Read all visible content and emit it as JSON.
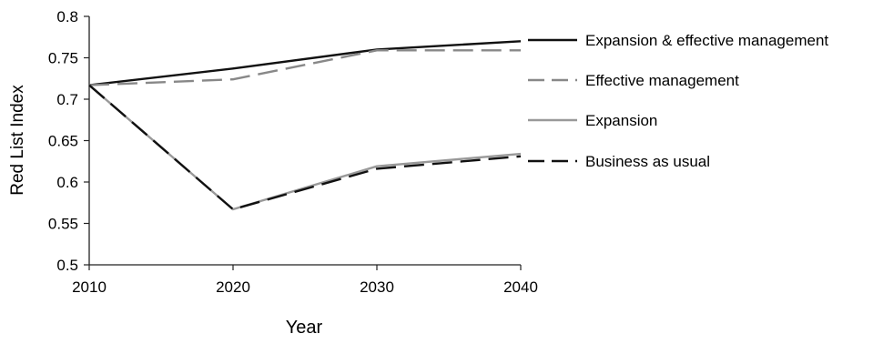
{
  "chart_data": {
    "type": "line",
    "title": "",
    "xlabel": "Year",
    "ylabel": "Red List Index",
    "x": [
      2010,
      2020,
      2030,
      2040
    ],
    "xlim": [
      2010,
      2040
    ],
    "ylim": [
      0.5,
      0.8
    ],
    "x_ticks": [
      "2010",
      "2020",
      "2030",
      "2040"
    ],
    "y_ticks": [
      "0.5",
      "0.55",
      "0.6",
      "0.65",
      "0.7",
      "0.75",
      "0.8"
    ],
    "grid": false,
    "legend_position": "right",
    "series": [
      {
        "name": "Expansion & effective management",
        "values": [
          0.717,
          0.737,
          0.76,
          0.77
        ],
        "color": "#111111",
        "dash": "solid"
      },
      {
        "name": "Effective management",
        "values": [
          0.717,
          0.724,
          0.759,
          0.759
        ],
        "color": "#888888",
        "dash": "dashed"
      },
      {
        "name": "Expansion",
        "values": [
          0.717,
          0.567,
          0.619,
          0.634
        ],
        "color": "#999999",
        "dash": "solid"
      },
      {
        "name": "Business as usual",
        "values": [
          0.717,
          0.567,
          0.616,
          0.631
        ],
        "color": "#111111",
        "dash": "dashed"
      }
    ]
  }
}
